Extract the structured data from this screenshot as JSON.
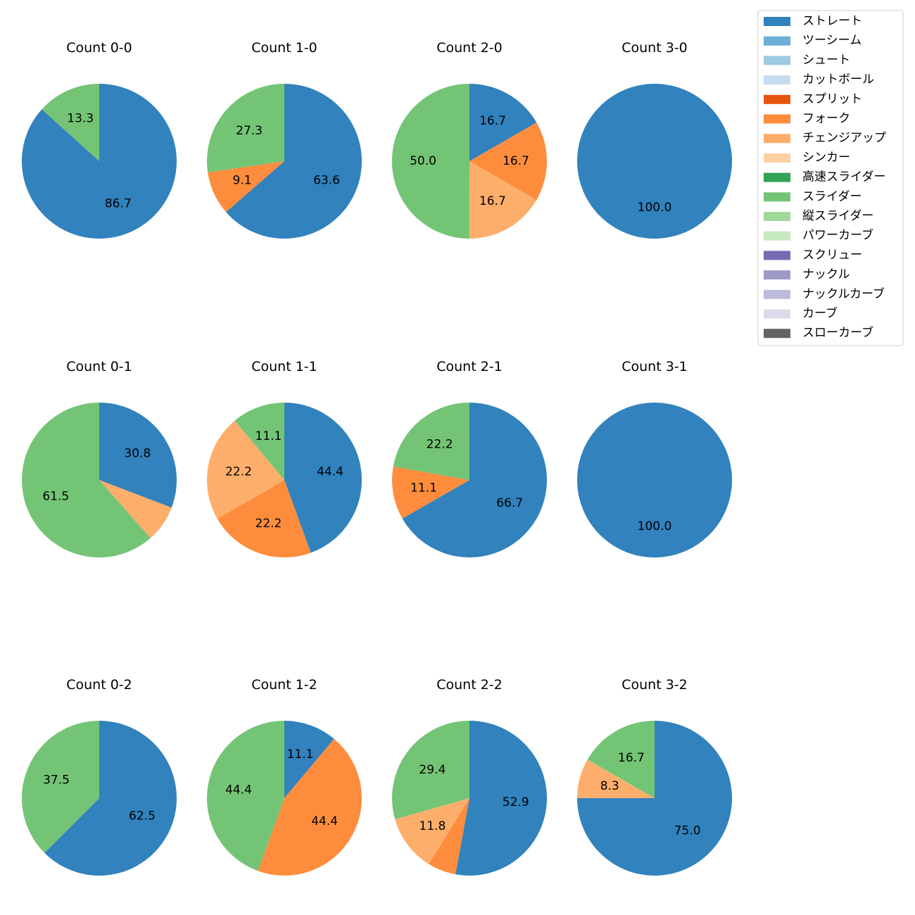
{
  "legend": {
    "items": [
      {
        "label": "ストレート",
        "color": "#3182bd"
      },
      {
        "label": "ツーシーム",
        "color": "#6baed6"
      },
      {
        "label": "シュート",
        "color": "#9ecae1"
      },
      {
        "label": "カットボール",
        "color": "#c6dbef"
      },
      {
        "label": "スプリット",
        "color": "#e6550d"
      },
      {
        "label": "フォーク",
        "color": "#fd8d3c"
      },
      {
        "label": "チェンジアップ",
        "color": "#fdae6b"
      },
      {
        "label": "シンカー",
        "color": "#fdd0a2"
      },
      {
        "label": "高速スライダー",
        "color": "#31a354"
      },
      {
        "label": "スライダー",
        "color": "#74c476"
      },
      {
        "label": "縦スライダー",
        "color": "#a1d99b"
      },
      {
        "label": "パワーカーブ",
        "color": "#c7e9c0"
      },
      {
        "label": "スクリュー",
        "color": "#756bb1"
      },
      {
        "label": "ナックル",
        "color": "#9e9ac8"
      },
      {
        "label": "ナックルカーブ",
        "color": "#bcbddc"
      },
      {
        "label": "カーブ",
        "color": "#dadaeb"
      },
      {
        "label": "スローカーブ",
        "color": "#636363"
      }
    ]
  },
  "chart_data": [
    {
      "type": "pie",
      "title": "Count 0-0",
      "slices": [
        {
          "category": "ストレート",
          "value": 86.7,
          "label": "86.7"
        },
        {
          "category": "スライダー",
          "value": 13.3,
          "label": "13.3"
        }
      ]
    },
    {
      "type": "pie",
      "title": "Count 1-0",
      "slices": [
        {
          "category": "ストレート",
          "value": 63.6,
          "label": "63.6"
        },
        {
          "category": "フォーク",
          "value": 9.1,
          "label": "9.1"
        },
        {
          "category": "スライダー",
          "value": 27.3,
          "label": "27.3"
        }
      ]
    },
    {
      "type": "pie",
      "title": "Count 2-0",
      "slices": [
        {
          "category": "ストレート",
          "value": 16.7,
          "label": "16.7"
        },
        {
          "category": "フォーク",
          "value": 16.7,
          "label": "16.7"
        },
        {
          "category": "チェンジアップ",
          "value": 16.7,
          "label": "16.7"
        },
        {
          "category": "スライダー",
          "value": 50.0,
          "label": "50.0"
        }
      ]
    },
    {
      "type": "pie",
      "title": "Count 3-0",
      "slices": [
        {
          "category": "ストレート",
          "value": 100.0,
          "label": "100.0"
        }
      ]
    },
    {
      "type": "pie",
      "title": "Count 0-1",
      "slices": [
        {
          "category": "ストレート",
          "value": 30.8,
          "label": "30.8"
        },
        {
          "category": "チェンジアップ",
          "value": 7.7,
          "label": ""
        },
        {
          "category": "スライダー",
          "value": 61.5,
          "label": "61.5"
        }
      ]
    },
    {
      "type": "pie",
      "title": "Count 1-1",
      "slices": [
        {
          "category": "ストレート",
          "value": 44.4,
          "label": "44.4"
        },
        {
          "category": "フォーク",
          "value": 22.2,
          "label": "22.2"
        },
        {
          "category": "チェンジアップ",
          "value": 22.2,
          "label": "22.2"
        },
        {
          "category": "スライダー",
          "value": 11.1,
          "label": "11.1"
        }
      ]
    },
    {
      "type": "pie",
      "title": "Count 2-1",
      "slices": [
        {
          "category": "ストレート",
          "value": 66.7,
          "label": "66.7"
        },
        {
          "category": "フォーク",
          "value": 11.1,
          "label": "11.1"
        },
        {
          "category": "スライダー",
          "value": 22.2,
          "label": "22.2"
        }
      ]
    },
    {
      "type": "pie",
      "title": "Count 3-1",
      "slices": [
        {
          "category": "ストレート",
          "value": 100.0,
          "label": "100.0"
        }
      ]
    },
    {
      "type": "pie",
      "title": "Count 0-2",
      "slices": [
        {
          "category": "ストレート",
          "value": 62.5,
          "label": "62.5"
        },
        {
          "category": "スライダー",
          "value": 37.5,
          "label": "37.5"
        }
      ]
    },
    {
      "type": "pie",
      "title": "Count 1-2",
      "slices": [
        {
          "category": "ストレート",
          "value": 11.1,
          "label": "11.1"
        },
        {
          "category": "フォーク",
          "value": 44.4,
          "label": "44.4"
        },
        {
          "category": "スライダー",
          "value": 44.4,
          "label": "44.4"
        }
      ]
    },
    {
      "type": "pie",
      "title": "Count 2-2",
      "slices": [
        {
          "category": "ストレート",
          "value": 52.9,
          "label": "52.9"
        },
        {
          "category": "フォーク",
          "value": 5.9,
          "label": ""
        },
        {
          "category": "チェンジアップ",
          "value": 11.8,
          "label": "11.8"
        },
        {
          "category": "スライダー",
          "value": 29.4,
          "label": "29.4"
        }
      ]
    },
    {
      "type": "pie",
      "title": "Count 3-2",
      "slices": [
        {
          "category": "ストレート",
          "value": 75.0,
          "label": "75.0"
        },
        {
          "category": "チェンジアップ",
          "value": 8.3,
          "label": "8.3"
        },
        {
          "category": "スライダー",
          "value": 16.7,
          "label": "16.7"
        }
      ]
    }
  ]
}
